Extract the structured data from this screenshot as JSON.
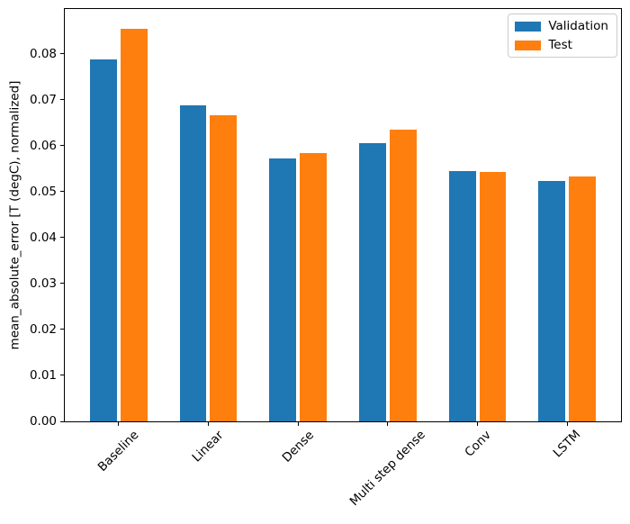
{
  "chart_data": {
    "type": "bar",
    "title": "",
    "categories": [
      "Baseline",
      "Linear",
      "Dense",
      "Multi step dense",
      "Conv",
      "LSTM"
    ],
    "series": [
      {
        "name": "Validation",
        "color": "#1f77b4",
        "values": [
          0.0787,
          0.0688,
          0.0572,
          0.0606,
          0.0544,
          0.0523
        ]
      },
      {
        "name": "Test",
        "color": "#ff7f0e",
        "values": [
          0.0854,
          0.0665,
          0.0583,
          0.0634,
          0.0542,
          0.0533
        ]
      }
    ],
    "xlabel": "",
    "ylabel": "mean_absolute_error [T (degC), normalized]",
    "ylim": [
      0,
      0.0897
    ],
    "xlim": [
      -0.6,
      5.6
    ],
    "ytick_values": [
      0.0,
      0.01,
      0.02,
      0.03,
      0.04,
      0.05,
      0.06,
      0.07,
      0.08
    ],
    "ytick_labels": [
      "0.00",
      "0.01",
      "0.02",
      "0.03",
      "0.04",
      "0.05",
      "0.06",
      "0.07",
      "0.08"
    ],
    "bar_width": 0.3,
    "bar_offsets": [
      -0.17,
      0.17
    ],
    "grid": false,
    "legend_position": "upper right",
    "x_label_rotation_deg": 45
  }
}
